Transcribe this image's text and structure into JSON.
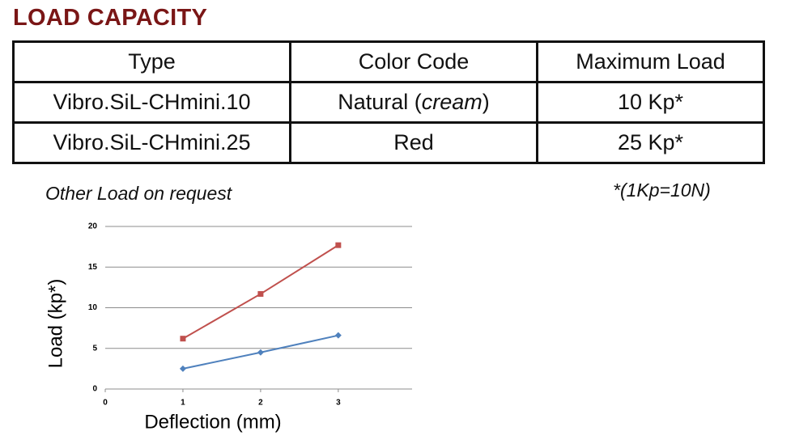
{
  "header": {
    "title": "LOAD CAPACITY"
  },
  "table": {
    "columns": [
      "Type",
      "Color Code",
      "Maximum Load"
    ],
    "rows": [
      [
        "Vibro.SiL-CHmini.10",
        [
          "Natural (",
          "cream",
          ")"
        ],
        "10 Kp*"
      ],
      [
        "Vibro.SiL-CHmini.25",
        [
          "Red"
        ],
        "25 Kp*"
      ]
    ]
  },
  "notes": {
    "left": "Other Load on request",
    "right": "*(1Kp=10N)"
  },
  "chart_data": {
    "type": "line",
    "x_label": "Deflection (mm)",
    "y_label": "Load (kp*)",
    "xlim": [
      0,
      3.95
    ],
    "xticks": [
      0,
      1,
      2,
      3
    ],
    "ylim": [
      0,
      21
    ],
    "yticks": [
      0,
      5,
      10,
      15,
      20
    ],
    "grid": true,
    "series": [
      {
        "color": "#c0504d",
        "marker": "square",
        "x": [
          1,
          2,
          3
        ],
        "values": [
          6.2,
          11.7,
          17.7
        ]
      },
      {
        "color": "#4f81bd",
        "marker": "diamond",
        "x": [
          1,
          2,
          3
        ],
        "values": [
          2.5,
          4.5,
          6.6
        ]
      }
    ]
  }
}
